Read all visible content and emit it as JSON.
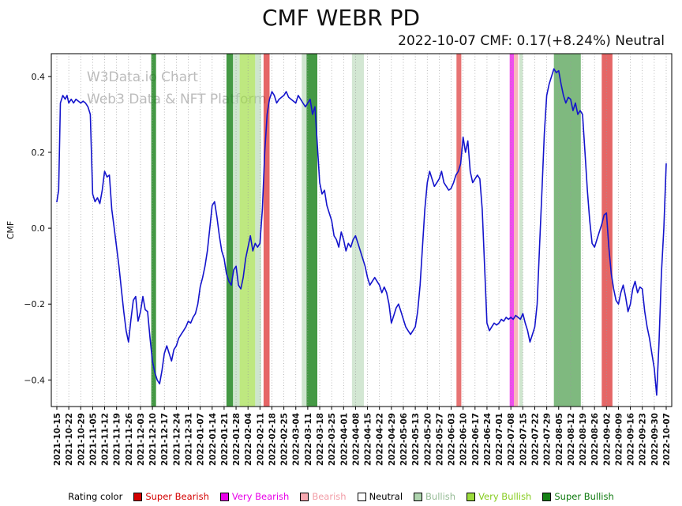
{
  "title": "CMF WEBR PD",
  "subtitle": "2022-10-07 CMF: 0.17(+8.24%) Neutral",
  "watermark": {
    "line1": "W3Data.io Chart",
    "line2": "Web3 Data & NFT Platform"
  },
  "legend": {
    "label": "Rating color",
    "items": [
      {
        "label": "Super Bearish",
        "color": "#d40000",
        "text_color": "#d40000"
      },
      {
        "label": "Very Bearish",
        "color": "#e800e8",
        "text_color": "#e800e8"
      },
      {
        "label": "Bearish",
        "color": "#f7a8b0",
        "text_color": "#f29ca6"
      },
      {
        "label": "Neutral",
        "color": "#ffffff",
        "text_color": "#000000"
      },
      {
        "label": "Bullish",
        "color": "#aed4ae",
        "text_color": "#95bb95"
      },
      {
        "label": "Very Bullish",
        "color": "#9bdc3c",
        "text_color": "#86cc1f"
      },
      {
        "label": "Super Bullish",
        "color": "#158015",
        "text_color": "#0e7a0e"
      }
    ]
  },
  "chart_data": {
    "type": "line",
    "title": "CMF WEBR PD",
    "subtitle": "2022-10-07 CMF: 0.17(+8.24%) Neutral",
    "xlabel": "",
    "ylabel": "CMF",
    "ylim": [
      -0.47,
      0.46
    ],
    "yticks": [
      0.4,
      0.2,
      0,
      -0.2,
      -0.4
    ],
    "grid": "vertical-dotted",
    "x_tick_labels": [
      "2021-10-15",
      "2021-10-22",
      "2021-10-29",
      "2021-11-05",
      "2021-11-12",
      "2021-11-19",
      "2021-11-26",
      "2021-12-03",
      "2021-12-10",
      "2021-12-17",
      "2021-12-24",
      "2021-12-31",
      "2022-01-07",
      "2022-01-14",
      "2022-01-21",
      "2022-01-28",
      "2022-02-04",
      "2022-02-11",
      "2022-02-18",
      "2022-02-25",
      "2022-03-04",
      "2022-03-11",
      "2022-03-18",
      "2022-03-25",
      "2022-04-01",
      "2022-04-08",
      "2022-04-15",
      "2022-04-22",
      "2022-04-29",
      "2022-05-06",
      "2022-05-13",
      "2022-05-20",
      "2022-05-27",
      "2022-06-03",
      "2022-06-10",
      "2022-06-17",
      "2022-06-24",
      "2022-07-01",
      "2022-07-08",
      "2022-07-15",
      "2022-07-22",
      "2022-07-29",
      "2022-08-05",
      "2022-08-12",
      "2022-08-19",
      "2022-08-26",
      "2022-09-02",
      "2022-09-09",
      "2022-09-16",
      "2022-09-23",
      "2022-09-30",
      "2022-10-07"
    ],
    "rating_colors": {
      "super_bearish": "#d40000",
      "very_bearish": "#e800e8",
      "bearish": "#f7a8b0",
      "neutral": "#ffffff",
      "bullish": "#aed4ae",
      "very_bullish": "#9bdc3c",
      "super_bullish": "#158015"
    },
    "bands": [
      {
        "start": 7.9,
        "end": 8.3,
        "rating": "super_bullish",
        "opacity": 0.8
      },
      {
        "start": 14.2,
        "end": 14.75,
        "rating": "super_bullish",
        "opacity": 0.8
      },
      {
        "start": 14.75,
        "end": 15.3,
        "rating": "bullish",
        "opacity": 0.6
      },
      {
        "start": 15.3,
        "end": 16.6,
        "rating": "very_bullish",
        "opacity": 0.65
      },
      {
        "start": 16.6,
        "end": 17.1,
        "rating": "bullish",
        "opacity": 0.6
      },
      {
        "start": 17.3,
        "end": 17.8,
        "rating": "super_bearish",
        "opacity": 0.6
      },
      {
        "start": 20.5,
        "end": 20.9,
        "rating": "bullish",
        "opacity": 0.6
      },
      {
        "start": 20.9,
        "end": 21.8,
        "rating": "super_bullish",
        "opacity": 0.8
      },
      {
        "start": 24.7,
        "end": 25.7,
        "rating": "bullish",
        "opacity": 0.55
      },
      {
        "start": 33.45,
        "end": 33.85,
        "rating": "super_bearish",
        "opacity": 0.55
      },
      {
        "start": 37.9,
        "end": 38.25,
        "rating": "very_bearish",
        "opacity": 0.7
      },
      {
        "start": 38.25,
        "end": 38.6,
        "rating": "bearish",
        "opacity": 0.85
      },
      {
        "start": 38.7,
        "end": 39.0,
        "rating": "bullish",
        "opacity": 0.6
      },
      {
        "start": 41.6,
        "end": 43.85,
        "rating": "super_bullish",
        "opacity": 0.55
      },
      {
        "start": 45.6,
        "end": 46.5,
        "rating": "super_bearish",
        "opacity": 0.6
      }
    ],
    "series": [
      {
        "name": "CMF",
        "color": "#1414cc",
        "x_unit": "week-index (0 = 2021-10-15, 51 = 2022-10-07)",
        "points": [
          [
            0,
            0.07
          ],
          [
            0.15,
            0.1
          ],
          [
            0.3,
            0.33
          ],
          [
            0.5,
            0.35
          ],
          [
            0.7,
            0.34
          ],
          [
            0.85,
            0.35
          ],
          [
            1,
            0.33
          ],
          [
            1.2,
            0.34
          ],
          [
            1.4,
            0.33
          ],
          [
            1.6,
            0.34
          ],
          [
            1.8,
            0.335
          ],
          [
            2,
            0.33
          ],
          [
            2.2,
            0.335
          ],
          [
            2.4,
            0.33
          ],
          [
            2.6,
            0.32
          ],
          [
            2.8,
            0.3
          ],
          [
            3,
            0.09
          ],
          [
            3.2,
            0.07
          ],
          [
            3.4,
            0.08
          ],
          [
            3.6,
            0.065
          ],
          [
            3.8,
            0.1
          ],
          [
            4,
            0.15
          ],
          [
            4.2,
            0.135
          ],
          [
            4.4,
            0.14
          ],
          [
            4.6,
            0.05
          ],
          [
            4.8,
            0
          ],
          [
            5,
            -0.05
          ],
          [
            5.2,
            -0.1
          ],
          [
            5.4,
            -0.16
          ],
          [
            5.6,
            -0.22
          ],
          [
            5.8,
            -0.27
          ],
          [
            6,
            -0.3
          ],
          [
            6.2,
            -0.24
          ],
          [
            6.4,
            -0.19
          ],
          [
            6.6,
            -0.18
          ],
          [
            6.8,
            -0.245
          ],
          [
            7,
            -0.22
          ],
          [
            7.2,
            -0.18
          ],
          [
            7.4,
            -0.215
          ],
          [
            7.6,
            -0.22
          ],
          [
            7.8,
            -0.29
          ],
          [
            8,
            -0.35
          ],
          [
            8.2,
            -0.38
          ],
          [
            8.4,
            -0.4
          ],
          [
            8.6,
            -0.41
          ],
          [
            8.8,
            -0.375
          ],
          [
            9,
            -0.33
          ],
          [
            9.2,
            -0.31
          ],
          [
            9.4,
            -0.33
          ],
          [
            9.6,
            -0.35
          ],
          [
            9.8,
            -0.32
          ],
          [
            10,
            -0.31
          ],
          [
            10.2,
            -0.29
          ],
          [
            10.4,
            -0.28
          ],
          [
            10.6,
            -0.27
          ],
          [
            10.8,
            -0.26
          ],
          [
            11,
            -0.245
          ],
          [
            11.2,
            -0.25
          ],
          [
            11.4,
            -0.235
          ],
          [
            11.6,
            -0.225
          ],
          [
            11.8,
            -0.2
          ],
          [
            12,
            -0.155
          ],
          [
            12.2,
            -0.13
          ],
          [
            12.4,
            -0.1
          ],
          [
            12.6,
            -0.06
          ],
          [
            12.8,
            0
          ],
          [
            13,
            0.06
          ],
          [
            13.2,
            0.07
          ],
          [
            13.4,
            0.03
          ],
          [
            13.6,
            -0.02
          ],
          [
            13.8,
            -0.06
          ],
          [
            14,
            -0.08
          ],
          [
            14.2,
            -0.12
          ],
          [
            14.4,
            -0.14
          ],
          [
            14.6,
            -0.15
          ],
          [
            14.8,
            -0.11
          ],
          [
            15,
            -0.1
          ],
          [
            15.2,
            -0.15
          ],
          [
            15.4,
            -0.16
          ],
          [
            15.6,
            -0.13
          ],
          [
            15.8,
            -0.08
          ],
          [
            16,
            -0.05
          ],
          [
            16.2,
            -0.02
          ],
          [
            16.4,
            -0.06
          ],
          [
            16.6,
            -0.04
          ],
          [
            16.8,
            -0.05
          ],
          [
            17,
            -0.04
          ],
          [
            17.2,
            0.05
          ],
          [
            17.4,
            0.2
          ],
          [
            17.6,
            0.3
          ],
          [
            17.8,
            0.34
          ],
          [
            18,
            0.36
          ],
          [
            18.2,
            0.35
          ],
          [
            18.4,
            0.33
          ],
          [
            18.6,
            0.34
          ],
          [
            18.8,
            0.345
          ],
          [
            19,
            0.35
          ],
          [
            19.2,
            0.36
          ],
          [
            19.4,
            0.345
          ],
          [
            19.6,
            0.34
          ],
          [
            19.8,
            0.335
          ],
          [
            20,
            0.33
          ],
          [
            20.2,
            0.35
          ],
          [
            20.4,
            0.34
          ],
          [
            20.6,
            0.33
          ],
          [
            20.8,
            0.32
          ],
          [
            21,
            0.33
          ],
          [
            21.2,
            0.34
          ],
          [
            21.4,
            0.3
          ],
          [
            21.6,
            0.32
          ],
          [
            21.8,
            0.22
          ],
          [
            22,
            0.12
          ],
          [
            22.2,
            0.09
          ],
          [
            22.4,
            0.1
          ],
          [
            22.6,
            0.06
          ],
          [
            22.8,
            0.04
          ],
          [
            23,
            0.02
          ],
          [
            23.2,
            -0.02
          ],
          [
            23.4,
            -0.03
          ],
          [
            23.6,
            -0.05
          ],
          [
            23.8,
            -0.01
          ],
          [
            24,
            -0.03
          ],
          [
            24.2,
            -0.06
          ],
          [
            24.4,
            -0.04
          ],
          [
            24.6,
            -0.05
          ],
          [
            24.8,
            -0.03
          ],
          [
            25,
            -0.02
          ],
          [
            25.2,
            -0.04
          ],
          [
            25.4,
            -0.06
          ],
          [
            25.6,
            -0.08
          ],
          [
            25.8,
            -0.1
          ],
          [
            26,
            -0.13
          ],
          [
            26.2,
            -0.15
          ],
          [
            26.4,
            -0.14
          ],
          [
            26.6,
            -0.13
          ],
          [
            26.8,
            -0.14
          ],
          [
            27,
            -0.15
          ],
          [
            27.2,
            -0.17
          ],
          [
            27.4,
            -0.155
          ],
          [
            27.6,
            -0.17
          ],
          [
            27.8,
            -0.2
          ],
          [
            28,
            -0.25
          ],
          [
            28.2,
            -0.23
          ],
          [
            28.4,
            -0.21
          ],
          [
            28.6,
            -0.2
          ],
          [
            28.8,
            -0.22
          ],
          [
            29,
            -0.24
          ],
          [
            29.2,
            -0.26
          ],
          [
            29.4,
            -0.27
          ],
          [
            29.6,
            -0.28
          ],
          [
            29.8,
            -0.27
          ],
          [
            30,
            -0.26
          ],
          [
            30.2,
            -0.22
          ],
          [
            30.4,
            -0.15
          ],
          [
            30.6,
            -0.05
          ],
          [
            30.8,
            0.05
          ],
          [
            31,
            0.12
          ],
          [
            31.2,
            0.15
          ],
          [
            31.4,
            0.13
          ],
          [
            31.6,
            0.11
          ],
          [
            31.8,
            0.12
          ],
          [
            32,
            0.13
          ],
          [
            32.2,
            0.15
          ],
          [
            32.4,
            0.12
          ],
          [
            32.6,
            0.11
          ],
          [
            32.8,
            0.1
          ],
          [
            33,
            0.105
          ],
          [
            33.2,
            0.12
          ],
          [
            33.4,
            0.14
          ],
          [
            33.6,
            0.15
          ],
          [
            33.8,
            0.17
          ],
          [
            34,
            0.24
          ],
          [
            34.2,
            0.2
          ],
          [
            34.4,
            0.23
          ],
          [
            34.6,
            0.15
          ],
          [
            34.8,
            0.12
          ],
          [
            35,
            0.13
          ],
          [
            35.2,
            0.14
          ],
          [
            35.4,
            0.13
          ],
          [
            35.6,
            0.05
          ],
          [
            35.8,
            -0.1
          ],
          [
            36,
            -0.25
          ],
          [
            36.2,
            -0.27
          ],
          [
            36.4,
            -0.26
          ],
          [
            36.6,
            -0.25
          ],
          [
            36.8,
            -0.255
          ],
          [
            37,
            -0.25
          ],
          [
            37.2,
            -0.24
          ],
          [
            37.4,
            -0.245
          ],
          [
            37.6,
            -0.235
          ],
          [
            37.8,
            -0.24
          ],
          [
            38,
            -0.235
          ],
          [
            38.2,
            -0.24
          ],
          [
            38.4,
            -0.23
          ],
          [
            38.6,
            -0.235
          ],
          [
            38.8,
            -0.24
          ],
          [
            39,
            -0.225
          ],
          [
            39.2,
            -0.25
          ],
          [
            39.4,
            -0.27
          ],
          [
            39.6,
            -0.3
          ],
          [
            39.8,
            -0.28
          ],
          [
            40,
            -0.26
          ],
          [
            40.2,
            -0.2
          ],
          [
            40.4,
            -0.05
          ],
          [
            40.6,
            0.1
          ],
          [
            40.8,
            0.25
          ],
          [
            41,
            0.35
          ],
          [
            41.2,
            0.38
          ],
          [
            41.4,
            0.4
          ],
          [
            41.6,
            0.42
          ],
          [
            41.8,
            0.41
          ],
          [
            42,
            0.415
          ],
          [
            42.2,
            0.38
          ],
          [
            42.4,
            0.35
          ],
          [
            42.6,
            0.33
          ],
          [
            42.8,
            0.345
          ],
          [
            43,
            0.34
          ],
          [
            43.2,
            0.31
          ],
          [
            43.4,
            0.33
          ],
          [
            43.6,
            0.3
          ],
          [
            43.8,
            0.31
          ],
          [
            44,
            0.3
          ],
          [
            44.2,
            0.2
          ],
          [
            44.4,
            0.1
          ],
          [
            44.6,
            0.02
          ],
          [
            44.8,
            -0.04
          ],
          [
            45,
            -0.05
          ],
          [
            45.2,
            -0.03
          ],
          [
            45.4,
            -0.01
          ],
          [
            45.6,
            0.01
          ],
          [
            45.8,
            0.035
          ],
          [
            46,
            0.04
          ],
          [
            46.2,
            -0.05
          ],
          [
            46.4,
            -0.12
          ],
          [
            46.6,
            -0.16
          ],
          [
            46.8,
            -0.19
          ],
          [
            47,
            -0.2
          ],
          [
            47.2,
            -0.17
          ],
          [
            47.4,
            -0.15
          ],
          [
            47.6,
            -0.18
          ],
          [
            47.8,
            -0.22
          ],
          [
            48,
            -0.2
          ],
          [
            48.2,
            -0.16
          ],
          [
            48.4,
            -0.14
          ],
          [
            48.6,
            -0.17
          ],
          [
            48.8,
            -0.155
          ],
          [
            49,
            -0.16
          ],
          [
            49.2,
            -0.22
          ],
          [
            49.4,
            -0.26
          ],
          [
            49.6,
            -0.29
          ],
          [
            49.8,
            -0.33
          ],
          [
            50,
            -0.37
          ],
          [
            50.2,
            -0.44
          ],
          [
            50.4,
            -0.3
          ],
          [
            50.6,
            -0.12
          ],
          [
            50.8,
            0
          ],
          [
            51,
            0.17
          ]
        ]
      }
    ]
  }
}
